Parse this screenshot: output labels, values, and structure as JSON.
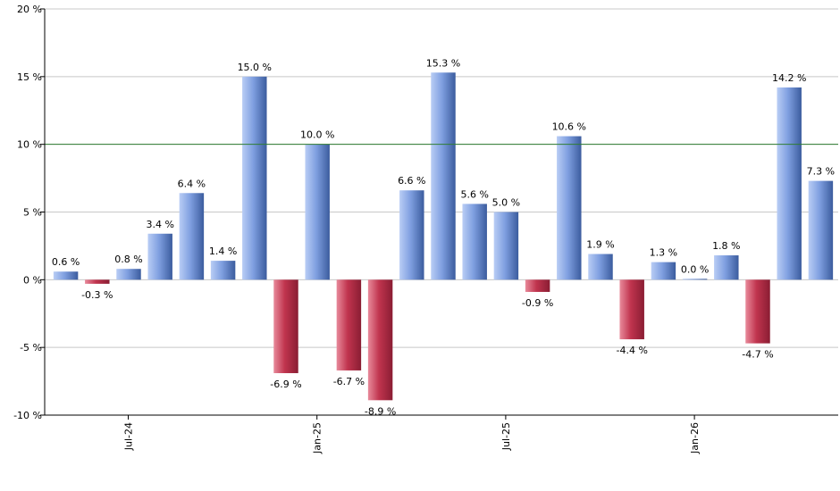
{
  "chart_data": {
    "type": "bar",
    "title": "",
    "xlabel": "",
    "ylabel": "",
    "ylim": [
      -10,
      20
    ],
    "y_ticks": [
      -10,
      -5,
      0,
      5,
      10,
      15,
      20
    ],
    "y_tick_labels": [
      "-10 %",
      "-5 %",
      "0 %",
      "5 %",
      "10 %",
      "15 %",
      "20 %"
    ],
    "reference_line": 10,
    "grid": true,
    "x_tick_labels": [
      {
        "label": "Jul-24",
        "index": 2
      },
      {
        "label": "Jan-25",
        "index": 8
      },
      {
        "label": "Jul-25",
        "index": 14
      },
      {
        "label": "Jan-26",
        "index": 20
      }
    ],
    "values": [
      0.6,
      -0.3,
      0.8,
      3.4,
      6.4,
      1.4,
      15.0,
      -6.9,
      10.0,
      -6.7,
      -8.9,
      6.6,
      15.3,
      5.6,
      5.0,
      -0.9,
      10.6,
      1.9,
      -4.4,
      1.3,
      0.0,
      1.8,
      -4.7,
      14.2,
      7.3
    ],
    "value_labels": [
      "0.6 %",
      "-0.3 %",
      "0.8 %",
      "3.4 %",
      "6.4 %",
      "1.4 %",
      "15.0 %",
      "-6.9 %",
      "10.0 %",
      "-6.7 %",
      "-8.9 %",
      "6.6 %",
      "15.3 %",
      "5.6 %",
      "5.0 %",
      "-0.9 %",
      "10.6 %",
      "1.9 %",
      "-4.4 %",
      "1.3 %",
      "0.0 %",
      "1.8 %",
      "-4.7 %",
      "14.2 %",
      "7.3 %"
    ],
    "colors": {
      "positive": "#6f8fd6",
      "positive_light": "#b9cdf5",
      "positive_dark": "#3b5c9e",
      "negative": "#c0344e",
      "negative_light": "#e88a9b",
      "negative_dark": "#8a1d33",
      "reference_line": "#2f7d32",
      "grid": "#c8c8c8",
      "axis": "#000000"
    }
  }
}
